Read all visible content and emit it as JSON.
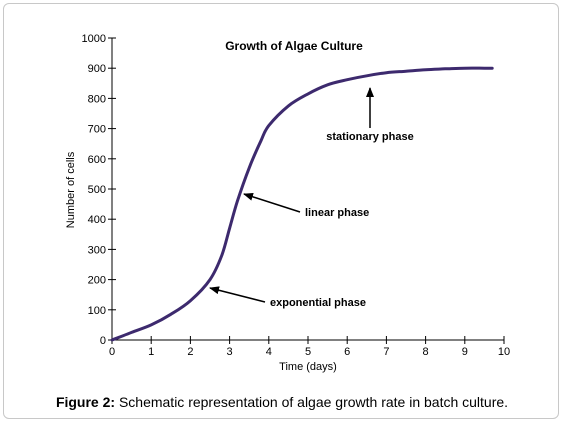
{
  "chart_data": {
    "type": "line",
    "title": "Growth of Algae Culture",
    "xlabel": "Time (days)",
    "ylabel": "Number of cells",
    "xlim": [
      0,
      10
    ],
    "ylim": [
      0,
      1000
    ],
    "x_ticks": [
      0,
      1,
      2,
      3,
      4,
      5,
      6,
      7,
      8,
      9,
      10
    ],
    "y_ticks": [
      0,
      100,
      200,
      300,
      400,
      500,
      600,
      700,
      800,
      900,
      1000
    ],
    "grid": false,
    "series": [
      {
        "x": [
          0,
          0.5,
          1,
          1.5,
          2,
          2.5,
          2.8,
          3,
          3.2,
          3.5,
          3.8,
          4,
          4.5,
          5,
          5.5,
          6,
          6.5,
          7,
          7.5,
          8,
          8.5,
          9,
          9.5,
          9.7
        ],
        "y": [
          0,
          25,
          50,
          85,
          130,
          200,
          280,
          370,
          460,
          570,
          660,
          710,
          775,
          815,
          845,
          862,
          875,
          885,
          890,
          895,
          898,
          900,
          900,
          900
        ]
      }
    ],
    "annotations": [
      {
        "text": "stationary phase",
        "x": 6.5,
        "y": 880
      },
      {
        "text": "linear phase",
        "x": 3.3,
        "y": 480
      },
      {
        "text": "exponential phase",
        "x": 2.5,
        "y": 180
      }
    ],
    "color": "#3d2a6e"
  },
  "caption": {
    "label": "Figure 2:",
    "text": " Schematic representation of algae growth rate in batch culture."
  }
}
